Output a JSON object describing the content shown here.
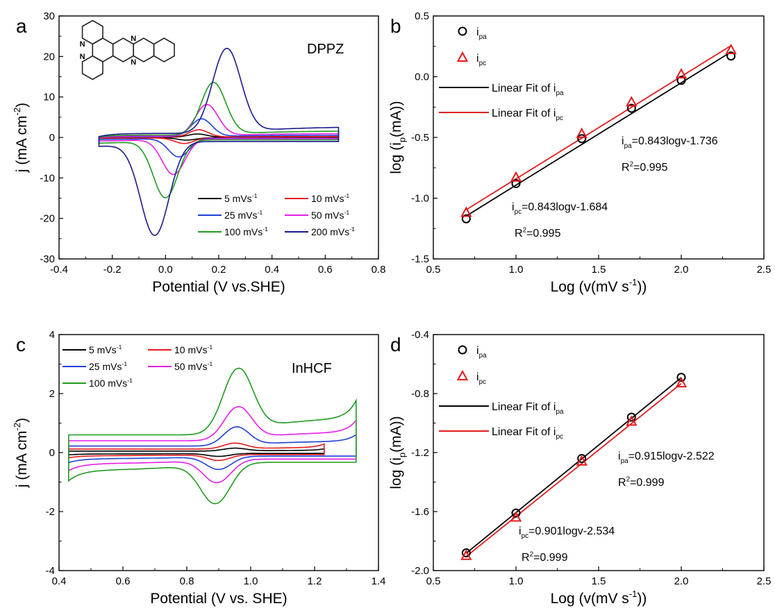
{
  "colors": {
    "black": "#000000",
    "red": "#e31a1c",
    "blue": "#1f3fd6",
    "magenta": "#e51ee5",
    "green": "#1f9a1f",
    "navy": "#1a1a8c",
    "molecule_n": "#1f5fd0"
  },
  "chart_data": [
    {
      "panel": "a",
      "type": "line",
      "annotation": "DPPZ",
      "xlabel": "Potential (V vs.SHE)",
      "ylabel": "j (mA cm",
      "ylabel_sup": "-2",
      "ylabel_end": ")",
      "xlim": [
        -0.4,
        0.8
      ],
      "ylim": [
        -30,
        30
      ],
      "xticks": [
        "-0.4",
        "-0.2",
        "0.0",
        "0.2",
        "0.4",
        "0.6",
        "0.8"
      ],
      "yticks": [
        "-30",
        "-20",
        "-10",
        "0",
        "10",
        "20",
        "30"
      ],
      "legend": "bottom-right",
      "series": [
        {
          "name": "5 mVs",
          "sup": "-1",
          "color": "black",
          "xmin": -0.25,
          "xmax": 0.65,
          "baseline": 0.05,
          "anodic": {
            "peak_x": 0.12,
            "peak_y": 0.8,
            "width": 0.05
          },
          "cathodic": {
            "peak_x": 0.08,
            "peak_y": -0.6,
            "width": 0.05
          }
        },
        {
          "name": "10 mVs",
          "sup": "-1",
          "color": "red",
          "xmin": -0.25,
          "xmax": 0.65,
          "baseline": 0.1,
          "anodic": {
            "peak_x": 0.125,
            "peak_y": 1.8,
            "width": 0.05
          },
          "cathodic": {
            "peak_x": 0.07,
            "peak_y": -1.4,
            "width": 0.05
          }
        },
        {
          "name": "25 mVs",
          "sup": "-1",
          "color": "blue",
          "xmin": -0.25,
          "xmax": 0.65,
          "baseline": 0.2,
          "anodic": {
            "peak_x": 0.135,
            "peak_y": 4.4,
            "width": 0.055
          },
          "cathodic": {
            "peak_x": 0.05,
            "peak_y": -4.6,
            "width": 0.055
          }
        },
        {
          "name": "50 mVs",
          "sup": "-1",
          "color": "magenta",
          "xmin": -0.25,
          "xmax": 0.65,
          "baseline": 0.35,
          "anodic": {
            "peak_x": 0.155,
            "peak_y": 7.8,
            "width": 0.06
          },
          "cathodic": {
            "peak_x": 0.03,
            "peak_y": -8.8,
            "width": 0.06
          }
        },
        {
          "name": "100 mVs",
          "sup": "-1",
          "color": "green",
          "xmin": -0.25,
          "xmax": 0.65,
          "baseline": 0.6,
          "anodic": {
            "peak_x": 0.18,
            "peak_y": 13.0,
            "width": 0.065
          },
          "cathodic": {
            "peak_x": 0.0,
            "peak_y": -14.3,
            "width": 0.065
          }
        },
        {
          "name": "200 mVs",
          "sup": "-1",
          "color": "navy",
          "xmin": -0.25,
          "xmax": 0.65,
          "baseline": 1.0,
          "anodic": {
            "peak_x": 0.23,
            "peak_y": 21.0,
            "width": 0.075
          },
          "cathodic": {
            "peak_x": -0.04,
            "peak_y": -23.2,
            "width": 0.075
          }
        }
      ]
    },
    {
      "panel": "b",
      "type": "scatter",
      "xlabel": "Log (v(mV s",
      "xlabel_sup": "-1",
      "xlabel_end": "))",
      "ylabel": "log (i",
      "ylabel_sub": "p",
      "ylabel_end": "(mA))",
      "xlim": [
        0.5,
        2.5
      ],
      "ylim": [
        -1.5,
        0.5
      ],
      "xticks": [
        "0.5",
        "1.0",
        "1.5",
        "2.0",
        "2.5"
      ],
      "yticks": [
        "-1.5",
        "-1.0",
        "-0.5",
        "0.0",
        "0.5"
      ],
      "legend": "top-left",
      "legend_entries": [
        {
          "label": "i",
          "sub": "pa"
        },
        {
          "label": "i",
          "sub": "pc"
        },
        {
          "label": "Linear Fit of i",
          "sub": "pa"
        },
        {
          "label": "Linear Fit of i",
          "sub": "pc"
        }
      ],
      "series": [
        {
          "name": "ipa",
          "color": "black",
          "marker": "circle",
          "x": [
            0.699,
            1.0,
            1.398,
            1.699,
            2.0,
            2.301
          ],
          "y": [
            -1.17,
            -0.88,
            -0.51,
            -0.26,
            -0.03,
            0.17
          ]
        },
        {
          "name": "ipc",
          "color": "red",
          "marker": "triangle",
          "x": [
            0.699,
            1.0,
            1.398,
            1.699,
            2.0,
            2.301
          ],
          "y": [
            -1.12,
            -0.83,
            -0.47,
            -0.21,
            0.02,
            0.22
          ]
        }
      ],
      "fits": [
        {
          "color": "black",
          "slope": 0.843,
          "intercept": -1.736,
          "x_range": [
            0.699,
            2.301
          ]
        },
        {
          "color": "red",
          "slope": 0.843,
          "intercept": -1.684,
          "x_range": [
            0.699,
            2.301
          ]
        }
      ],
      "equations": [
        {
          "color": "black",
          "pre": "i",
          "sub": "pa",
          "text": "=0.843logv-1.736",
          "r2_pre": "R",
          "r2_sup": "2",
          "r2_text": "=0.995"
        },
        {
          "color": "red",
          "pre": "i",
          "sub": "pc",
          "text": "=0.843logv-1.684",
          "r2_pre": "R",
          "r2_sup": "2",
          "r2_text": "=0.995"
        }
      ]
    },
    {
      "panel": "c",
      "type": "line",
      "annotation": "InHCF",
      "xlabel": "Potential (V vs. SHE)",
      "ylabel": "j (mA cm",
      "ylabel_sup": "-2",
      "ylabel_end": ")",
      "xlim": [
        0.4,
        1.4
      ],
      "ylim": [
        -4,
        4
      ],
      "xticks": [
        "0.4",
        "0.6",
        "0.8",
        "1.0",
        "1.2",
        "1.4"
      ],
      "yticks": [
        "-4",
        "-2",
        "0",
        "2",
        "4"
      ],
      "legend": "top-left",
      "series": [
        {
          "name": "5 mVs",
          "sup": "-1",
          "color": "black",
          "xmin": 0.43,
          "xmax": 1.23,
          "offset": 0.05,
          "anodic": {
            "peak_x": 0.95,
            "peak_y": 0.1,
            "width": 0.05
          },
          "cathodic": {
            "peak_x": 0.9,
            "peak_y": -0.1,
            "width": 0.05
          }
        },
        {
          "name": "10 mVs",
          "sup": "-1",
          "color": "red",
          "xmin": 0.43,
          "xmax": 1.23,
          "offset": 0.12,
          "anodic": {
            "peak_x": 0.95,
            "peak_y": 0.2,
            "width": 0.05
          },
          "cathodic": {
            "peak_x": 0.9,
            "peak_y": -0.2,
            "width": 0.05
          }
        },
        {
          "name": "25 mVs",
          "sup": "-1",
          "color": "blue",
          "xmin": 0.43,
          "xmax": 1.33,
          "offset": 0.22,
          "anodic": {
            "peak_x": 0.955,
            "peak_y": 0.65,
            "width": 0.055
          },
          "cathodic": {
            "peak_x": 0.9,
            "peak_y": -0.45,
            "width": 0.055
          }
        },
        {
          "name": "50 mVs",
          "sup": "-1",
          "color": "magenta",
          "xmin": 0.43,
          "xmax": 1.33,
          "offset": 0.4,
          "anodic": {
            "peak_x": 0.96,
            "peak_y": 1.15,
            "width": 0.06
          },
          "cathodic": {
            "peak_x": 0.895,
            "peak_y": -0.8,
            "width": 0.06
          }
        },
        {
          "name": "100 mVs",
          "sup": "-1",
          "color": "green",
          "xmin": 0.43,
          "xmax": 1.33,
          "offset": 0.6,
          "anodic": {
            "peak_x": 0.96,
            "peak_y": 2.25,
            "width": 0.065
          },
          "cathodic": {
            "peak_x": 0.89,
            "peak_y": -1.4,
            "width": 0.065
          }
        }
      ]
    },
    {
      "panel": "d",
      "type": "scatter",
      "xlabel": "Log (v(mV s",
      "xlabel_sup": "-1",
      "xlabel_end": "))",
      "ylabel": "log (i",
      "ylabel_sub": "p",
      "ylabel_end": "(mA))",
      "xlim": [
        0.5,
        2.5
      ],
      "ylim": [
        -2.0,
        -0.4
      ],
      "xticks": [
        "0.5",
        "1.0",
        "1.5",
        "2.0",
        "2.5"
      ],
      "yticks": [
        "-2.0",
        "-1.6",
        "-1.2",
        "-0.8",
        "-0.4"
      ],
      "legend": "top-left",
      "legend_entries": [
        {
          "label": "i",
          "sub": "pa"
        },
        {
          "label": "i",
          "sub": "pc"
        },
        {
          "label": "Linear Fit of i",
          "sub": "pa"
        },
        {
          "label": "Linear Fit of i",
          "sub": "pc"
        }
      ],
      "series": [
        {
          "name": "ipa",
          "color": "black",
          "marker": "circle",
          "x": [
            0.699,
            1.0,
            1.398,
            1.699,
            2.0
          ],
          "y": [
            -1.88,
            -1.61,
            -1.24,
            -0.96,
            -0.69
          ]
        },
        {
          "name": "ipc",
          "color": "red",
          "marker": "triangle",
          "x": [
            0.699,
            1.0,
            1.398,
            1.699,
            2.0
          ],
          "y": [
            -1.9,
            -1.64,
            -1.26,
            -0.99,
            -0.73
          ]
        }
      ],
      "fits": [
        {
          "color": "black",
          "slope": 0.915,
          "intercept": -2.522,
          "x_range": [
            0.699,
            2.0
          ]
        },
        {
          "color": "red",
          "slope": 0.901,
          "intercept": -2.534,
          "x_range": [
            0.699,
            2.0
          ]
        }
      ],
      "equations": [
        {
          "color": "black",
          "pre": "i",
          "sub": "pa",
          "text": "=0.915logv-2.522",
          "r2_pre": "R",
          "r2_sup": "2",
          "r2_text": "=0.999"
        },
        {
          "color": "red",
          "pre": "i",
          "sub": "pc",
          "text": "=0.901logv-2.534",
          "r2_pre": "R",
          "r2_sup": "2",
          "r2_text": "=0.999"
        }
      ]
    }
  ]
}
